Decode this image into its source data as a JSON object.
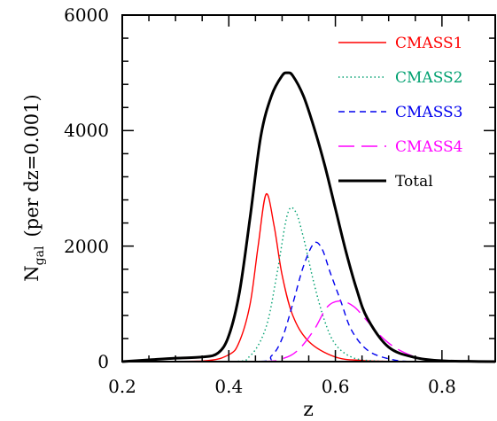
{
  "chart_data": {
    "type": "line",
    "title": "",
    "xlabel": "z",
    "ylabel": {
      "main": "N",
      "subscript": "gal",
      "suffix": "(per dz=0.001)"
    },
    "xlim": [
      0.2,
      0.9
    ],
    "ylim": [
      0,
      6000
    ],
    "x_ticks": [
      "0.2",
      "0.4",
      "0.6",
      "0.8"
    ],
    "y_ticks": [
      "0",
      "2000",
      "4000",
      "6000"
    ],
    "grid": false,
    "legend_position": "top-right",
    "series": [
      {
        "name": "CMASS1",
        "color": "#ff0000",
        "dash": "solid",
        "x": [
          0.2,
          0.35,
          0.4,
          0.42,
          0.44,
          0.455,
          0.47,
          0.485,
          0.5,
          0.52,
          0.55,
          0.6,
          0.65,
          0.7,
          0.8,
          0.9
        ],
        "y": [
          0,
          10,
          120,
          350,
          1000,
          2000,
          2900,
          2350,
          1500,
          800,
          350,
          80,
          20,
          5,
          0,
          0
        ]
      },
      {
        "name": "CMASS2",
        "color": "#00a070",
        "dash": "dotted",
        "x": [
          0.2,
          0.4,
          0.44,
          0.47,
          0.49,
          0.51,
          0.525,
          0.54,
          0.56,
          0.58,
          0.6,
          0.63,
          0.67,
          0.75,
          0.9
        ],
        "y": [
          0,
          0,
          100,
          600,
          1500,
          2550,
          2600,
          2150,
          1350,
          700,
          300,
          80,
          15,
          0,
          0
        ]
      },
      {
        "name": "CMASS3",
        "color": "#0000ee",
        "dash": "dashed",
        "x": [
          0.2,
          0.45,
          0.48,
          0.5,
          0.52,
          0.54,
          0.56,
          0.575,
          0.59,
          0.61,
          0.63,
          0.66,
          0.7,
          0.75,
          0.9
        ],
        "y": [
          0,
          0,
          100,
          400,
          1000,
          1650,
          2050,
          1950,
          1550,
          1050,
          550,
          200,
          50,
          0,
          0
        ]
      },
      {
        "name": "CMASS4",
        "color": "#ff00ff",
        "dash": "long-dashed",
        "x": [
          0.2,
          0.45,
          0.5,
          0.53,
          0.56,
          0.585,
          0.61,
          0.635,
          0.66,
          0.69,
          0.72,
          0.76,
          0.82,
          0.9
        ],
        "y": [
          0,
          0,
          50,
          200,
          550,
          950,
          1050,
          950,
          700,
          400,
          200,
          60,
          10,
          0
        ]
      },
      {
        "name": "Total",
        "color": "#000000",
        "dash": "solid-thick",
        "x": [
          0.2,
          0.25,
          0.3,
          0.35,
          0.38,
          0.4,
          0.42,
          0.44,
          0.46,
          0.48,
          0.5,
          0.51,
          0.52,
          0.54,
          0.56,
          0.58,
          0.6,
          0.62,
          0.64,
          0.66,
          0.7,
          0.75,
          0.8,
          0.85,
          0.9
        ],
        "y": [
          0,
          30,
          60,
          80,
          150,
          450,
          1200,
          2500,
          3900,
          4600,
          4950,
          5000,
          4950,
          4600,
          4050,
          3400,
          2650,
          1900,
          1250,
          750,
          250,
          70,
          15,
          5,
          0
        ]
      }
    ]
  }
}
